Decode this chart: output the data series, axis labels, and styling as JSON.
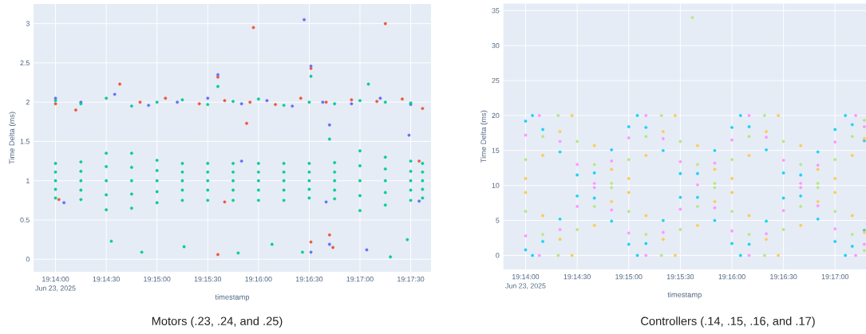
{
  "chart_data": [
    {
      "type": "scatter",
      "title": "Motors (.23, .24, and .25)",
      "xlabel": "timestamp",
      "ylabel": "Time Delta (ms)",
      "annotations": [
        "Jun 23, 2025"
      ],
      "xlim": [
        "2025-06-23T19:13:47",
        "2025-06-23T19:17:42"
      ],
      "ylim": [
        -0.16,
        3.25
      ],
      "xticks": [
        {
          "value": "2025-06-23T19:14:00",
          "label": "19:14:00"
        },
        {
          "value": "2025-06-23T19:14:30",
          "label": "19:14:30"
        },
        {
          "value": "2025-06-23T19:15:00",
          "label": "19:15:00"
        },
        {
          "value": "2025-06-23T19:15:30",
          "label": "19:15:30"
        },
        {
          "value": "2025-06-23T19:16:00",
          "label": "19:16:00"
        },
        {
          "value": "2025-06-23T19:16:30",
          "label": "19:16:30"
        },
        {
          "value": "2025-06-23T19:17:00",
          "label": "19:17:00"
        },
        {
          "value": "2025-06-23T19:17:30",
          "label": "19:17:30"
        }
      ],
      "yticks": [
        0,
        0.5,
        1,
        1.5,
        2,
        2.5,
        3
      ],
      "grid": true,
      "marker": "circle",
      "series": [
        {
          "color": "#ef553b",
          "x": [
            "2025-06-23T19:14:00",
            "2025-06-23T19:14:12",
            "2025-06-23T19:14:38",
            "2025-06-23T19:14:50",
            "2025-06-23T19:15:05",
            "2025-06-23T19:15:25",
            "2025-06-23T19:15:40",
            "2025-06-23T19:15:55",
            "2025-06-23T19:16:10",
            "2025-06-23T19:16:25",
            "2025-06-23T19:16:40",
            "2025-06-23T19:16:55",
            "2025-06-23T19:17:10",
            "2025-06-23T19:17:25",
            "2025-06-23T19:17:37",
            "2025-06-23T19:15:57",
            "2025-06-23T19:17:15",
            "2025-06-23T19:16:31",
            "2025-06-23T19:15:36",
            "2025-06-23T19:16:31",
            "2025-06-23T19:15:36",
            "2025-06-23T19:16:44",
            "2025-06-23T19:15:53",
            "2025-06-23T19:16:42",
            "2025-06-23T19:14:02",
            "2025-06-23T19:15:40",
            "2025-06-23T19:17:35"
          ],
          "values": [
            1.98,
            1.9,
            2.23,
            2.0,
            2.05,
            1.98,
            2.02,
            2.0,
            1.97,
            2.05,
            2.0,
            2.03,
            2.01,
            2.04,
            1.92,
            2.95,
            3.0,
            2.43,
            2.32,
            0.22,
            0.06,
            0.15,
            1.73,
            0.31,
            0.76,
            0.73,
            1.25
          ]
        },
        {
          "color": "#636efa",
          "x": [
            "2025-06-23T19:14:00",
            "2025-06-23T19:14:15",
            "2025-06-23T19:14:35",
            "2025-06-23T19:14:55",
            "2025-06-23T19:15:12",
            "2025-06-23T19:15:30",
            "2025-06-23T19:15:50",
            "2025-06-23T19:16:05",
            "2025-06-23T19:16:20",
            "2025-06-23T19:16:38",
            "2025-06-23T19:16:55",
            "2025-06-23T19:17:12",
            "2025-06-23T19:17:30",
            "2025-06-23T19:16:27",
            "2025-06-23T19:16:31",
            "2025-06-23T19:15:36",
            "2025-06-23T19:16:31",
            "2025-06-23T19:16:42",
            "2025-06-23T19:17:29",
            "2025-06-23T19:16:42",
            "2025-06-23T19:17:04",
            "2025-06-23T19:14:05",
            "2025-06-23T19:15:50",
            "2025-06-23T19:16:40",
            "2025-06-23T19:17:35"
          ],
          "values": [
            2.05,
            2.0,
            2.1,
            1.96,
            2.0,
            2.05,
            1.98,
            2.02,
            1.95,
            2.0,
            1.98,
            2.05,
            1.97,
            3.05,
            2.46,
            2.35,
            0.09,
            0.19,
            1.58,
            1.71,
            0.12,
            0.72,
            1.25,
            0.73,
            0.74
          ]
        },
        {
          "color": "#00cc96",
          "x": [
            "2025-06-23T19:14:00",
            "2025-06-23T19:14:00",
            "2025-06-23T19:14:00",
            "2025-06-23T19:14:00",
            "2025-06-23T19:14:00",
            "2025-06-23T19:14:15",
            "2025-06-23T19:14:15",
            "2025-06-23T19:14:15",
            "2025-06-23T19:14:15",
            "2025-06-23T19:14:15",
            "2025-06-23T19:14:30",
            "2025-06-23T19:14:30",
            "2025-06-23T19:14:30",
            "2025-06-23T19:14:30",
            "2025-06-23T19:14:30",
            "2025-06-23T19:14:45",
            "2025-06-23T19:14:45",
            "2025-06-23T19:14:45",
            "2025-06-23T19:14:45",
            "2025-06-23T19:14:45",
            "2025-06-23T19:15:00",
            "2025-06-23T19:15:00",
            "2025-06-23T19:15:00",
            "2025-06-23T19:15:00",
            "2025-06-23T19:15:00",
            "2025-06-23T19:15:15",
            "2025-06-23T19:15:15",
            "2025-06-23T19:15:15",
            "2025-06-23T19:15:15",
            "2025-06-23T19:15:15",
            "2025-06-23T19:15:30",
            "2025-06-23T19:15:30",
            "2025-06-23T19:15:30",
            "2025-06-23T19:15:30",
            "2025-06-23T19:15:30",
            "2025-06-23T19:15:45",
            "2025-06-23T19:15:45",
            "2025-06-23T19:15:45",
            "2025-06-23T19:15:45",
            "2025-06-23T19:15:45",
            "2025-06-23T19:16:00",
            "2025-06-23T19:16:00",
            "2025-06-23T19:16:00",
            "2025-06-23T19:16:00",
            "2025-06-23T19:16:00",
            "2025-06-23T19:16:15",
            "2025-06-23T19:16:15",
            "2025-06-23T19:16:15",
            "2025-06-23T19:16:15",
            "2025-06-23T19:16:15",
            "2025-06-23T19:16:30",
            "2025-06-23T19:16:30",
            "2025-06-23T19:16:30",
            "2025-06-23T19:16:30",
            "2025-06-23T19:16:30",
            "2025-06-23T19:16:45",
            "2025-06-23T19:16:45",
            "2025-06-23T19:16:45",
            "2025-06-23T19:16:45",
            "2025-06-23T19:16:45",
            "2025-06-23T19:17:00",
            "2025-06-23T19:17:00",
            "2025-06-23T19:17:00",
            "2025-06-23T19:17:00",
            "2025-06-23T19:17:00",
            "2025-06-23T19:17:15",
            "2025-06-23T19:17:15",
            "2025-06-23T19:17:15",
            "2025-06-23T19:17:15",
            "2025-06-23T19:17:15",
            "2025-06-23T19:17:30",
            "2025-06-23T19:17:30",
            "2025-06-23T19:17:30",
            "2025-06-23T19:17:30",
            "2025-06-23T19:17:30",
            "2025-06-23T19:17:37",
            "2025-06-23T19:17:37",
            "2025-06-23T19:17:37",
            "2025-06-23T19:17:37",
            "2025-06-23T19:17:37",
            "2025-06-23T19:14:00",
            "2025-06-23T19:14:15",
            "2025-06-23T19:14:30",
            "2025-06-23T19:14:45",
            "2025-06-23T19:15:00",
            "2025-06-23T19:15:15",
            "2025-06-23T19:15:30",
            "2025-06-23T19:15:45",
            "2025-06-23T19:16:00",
            "2025-06-23T19:16:15",
            "2025-06-23T19:16:30",
            "2025-06-23T19:16:45",
            "2025-06-23T19:17:00",
            "2025-06-23T19:17:15",
            "2025-06-23T19:17:30",
            "2025-06-23T19:14:33",
            "2025-06-23T19:14:51",
            "2025-06-23T19:15:16",
            "2025-06-23T19:15:48",
            "2025-06-23T19:16:26",
            "2025-06-23T19:16:31",
            "2025-06-23T19:16:08",
            "2025-06-23T19:16:42",
            "2025-06-23T19:17:18",
            "2025-06-23T19:17:28",
            "2025-06-23T19:15:36",
            "2025-06-23T19:17:05"
          ],
          "values": [
            1.22,
            1.11,
            1,
            0.89,
            0.78,
            1.24,
            1.12,
            1,
            0.88,
            0.76,
            1.35,
            1.18,
            1,
            0.82,
            0.63,
            1.35,
            1.17,
            1,
            0.83,
            0.65,
            1.26,
            1.13,
            1,
            0.86,
            0.72,
            1.22,
            1.11,
            1,
            0.88,
            0.75,
            1.22,
            1.11,
            1,
            0.88,
            0.75,
            1.22,
            1.11,
            1,
            0.88,
            0.75,
            1.22,
            1.11,
            1,
            0.88,
            0.75,
            1.22,
            1.11,
            1,
            0.88,
            0.75,
            1.22,
            1.11,
            1,
            0.89,
            0.78,
            1.23,
            1.11,
            1,
            0.88,
            0.77,
            1.38,
            1.19,
            1,
            0.81,
            0.62,
            1.3,
            1.15,
            1,
            0.85,
            0.69,
            1.25,
            1.12,
            1,
            0.88,
            0.75,
            1.22,
            1.11,
            1,
            0.89,
            0.78,
            2.02,
            1.98,
            2.05,
            1.95,
            2.0,
            2.03,
            1.97,
            2.01,
            2.04,
            1.96,
            2.0,
            1.98,
            2.02,
            2.0,
            1.99,
            0.23,
            0.09,
            0.16,
            0.08,
            0.09,
            2.33,
            0.19,
            1.53,
            0.03,
            0.25,
            2.2,
            2.23
          ]
        }
      ]
    },
    {
      "type": "scatter",
      "title": "Controllers (.14, .15, .16, and .17)",
      "xlabel": "timestamp",
      "ylabel": "Time Delta (ms)",
      "annotations": [
        "Jun 23, 2025"
      ],
      "xlim": [
        "2025-06-23T19:13:47",
        "2025-06-23T19:17:18"
      ],
      "ylim": [
        -2,
        36
      ],
      "xticks": [
        {
          "value": "2025-06-23T19:14:00",
          "label": "19:14:00"
        },
        {
          "value": "2025-06-23T19:14:30",
          "label": "19:14:30"
        },
        {
          "value": "2025-06-23T19:15:00",
          "label": "19:15:00"
        },
        {
          "value": "2025-06-23T19:15:30",
          "label": "19:15:30"
        },
        {
          "value": "2025-06-23T19:16:00",
          "label": "19:16:00"
        },
        {
          "value": "2025-06-23T19:16:30",
          "label": "19:16:30"
        },
        {
          "value": "2025-06-23T19:17:00",
          "label": "19:17:00"
        }
      ],
      "yticks": [
        0,
        5,
        10,
        15,
        20,
        25,
        30,
        35
      ],
      "grid": true,
      "marker": "circle",
      "series": [
        {
          "color": "#19d3f3",
          "x": [
            "2025-06-23T19:14:00",
            "2025-06-23T19:14:04",
            "2025-06-23T19:14:10",
            "2025-06-23T19:14:20",
            "2025-06-23T19:14:30",
            "2025-06-23T19:14:40",
            "2025-06-23T19:14:50",
            "2025-06-23T19:15:00",
            "2025-06-23T19:15:05",
            "2025-06-23T19:15:10",
            "2025-06-23T19:15:20",
            "2025-06-23T19:15:30",
            "2025-06-23T19:15:40",
            "2025-06-23T19:15:50",
            "2025-06-23T19:16:00",
            "2025-06-23T19:16:05",
            "2025-06-23T19:16:10",
            "2025-06-23T19:16:20",
            "2025-06-23T19:16:30",
            "2025-06-23T19:16:40",
            "2025-06-23T19:16:50",
            "2025-06-23T19:17:00",
            "2025-06-23T19:17:06",
            "2025-06-23T19:17:10",
            "2025-06-23T19:17:17",
            "2025-06-23T19:14:00",
            "2025-06-23T19:14:04",
            "2025-06-23T19:14:10",
            "2025-06-23T19:14:20",
            "2025-06-23T19:14:30",
            "2025-06-23T19:14:40",
            "2025-06-23T19:14:50",
            "2025-06-23T19:15:00",
            "2025-06-23T19:15:05",
            "2025-06-23T19:15:10",
            "2025-06-23T19:15:20",
            "2025-06-23T19:15:30",
            "2025-06-23T19:15:40",
            "2025-06-23T19:15:50",
            "2025-06-23T19:16:00",
            "2025-06-23T19:16:05",
            "2025-06-23T19:16:10",
            "2025-06-23T19:16:20",
            "2025-06-23T19:16:30",
            "2025-06-23T19:16:40",
            "2025-06-23T19:16:50",
            "2025-06-23T19:17:00",
            "2025-06-23T19:17:06",
            "2025-06-23T19:17:10",
            "2025-06-23T19:17:17"
          ],
          "values": [
            19.2,
            20,
            18.0,
            14.8,
            11.5,
            8.2,
            4.9,
            1.6,
            0,
            1.7,
            5.0,
            8.3,
            11.7,
            15.0,
            18.3,
            20,
            18.4,
            15.1,
            11.8,
            8.5,
            5.2,
            2.0,
            0,
            1.3,
            3.6,
            0.8,
            0,
            2.0,
            5.2,
            8.5,
            11.8,
            15.1,
            18.4,
            20,
            18.3,
            15.0,
            11.7,
            8.3,
            5.0,
            1.7,
            0,
            1.6,
            4.9,
            8.2,
            11.5,
            14.8,
            18.0,
            20,
            18.7,
            16.4
          ]
        },
        {
          "color": "#ff97ff",
          "x": [
            "2025-06-23T19:14:00",
            "2025-06-23T19:14:08",
            "2025-06-23T19:14:20",
            "2025-06-23T19:14:30",
            "2025-06-23T19:14:40",
            "2025-06-23T19:14:50",
            "2025-06-23T19:15:00",
            "2025-06-23T19:15:10",
            "2025-06-23T19:15:20",
            "2025-06-23T19:15:30",
            "2025-06-23T19:15:40",
            "2025-06-23T19:15:50",
            "2025-06-23T19:16:00",
            "2025-06-23T19:16:10",
            "2025-06-23T19:16:20",
            "2025-06-23T19:16:30",
            "2025-06-23T19:16:40",
            "2025-06-23T19:16:50",
            "2025-06-23T19:17:00",
            "2025-06-23T19:17:12",
            "2025-06-23T19:17:17",
            "2025-06-23T19:14:00",
            "2025-06-23T19:14:08",
            "2025-06-23T19:14:20",
            "2025-06-23T19:14:30",
            "2025-06-23T19:14:40",
            "2025-06-23T19:14:50",
            "2025-06-23T19:15:00",
            "2025-06-23T19:15:10",
            "2025-06-23T19:15:20",
            "2025-06-23T19:15:30",
            "2025-06-23T19:15:40",
            "2025-06-23T19:15:50",
            "2025-06-23T19:16:00",
            "2025-06-23T19:16:10",
            "2025-06-23T19:16:20",
            "2025-06-23T19:16:30",
            "2025-06-23T19:16:40",
            "2025-06-23T19:16:50",
            "2025-06-23T19:17:00",
            "2025-06-23T19:17:12",
            "2025-06-23T19:17:17"
          ],
          "values": [
            17.2,
            20,
            16.3,
            13.0,
            9.7,
            6.5,
            3.2,
            0,
            3.3,
            6.6,
            null,
            13.2,
            16.5,
            20,
            16.9,
            13.6,
            10.3,
            7.1,
            3.8,
            0,
            1.6,
            2.8,
            0,
            3.7,
            7.0,
            10.3,
            13.5,
            16.8,
            20,
            16.7,
            13.4,
            10.1,
            6.8,
            3.5,
            0,
            3.1,
            6.4,
            9.7,
            12.9,
            16.2,
            20,
            18.4
          ]
        },
        {
          "color": "#b6e880",
          "x": [
            "2025-06-23T19:14:00",
            "2025-06-23T19:14:10",
            "2025-06-23T19:14:19",
            "2025-06-23T19:14:30",
            "2025-06-23T19:14:40",
            "2025-06-23T19:14:50",
            "2025-06-23T19:15:00",
            "2025-06-23T19:15:10",
            "2025-06-23T19:15:19",
            "2025-06-23T19:15:30",
            "2025-06-23T19:15:40",
            "2025-06-23T19:15:50",
            "2025-06-23T19:16:00",
            "2025-06-23T19:16:10",
            "2025-06-23T19:16:19",
            "2025-06-23T19:16:30",
            "2025-06-23T19:16:40",
            "2025-06-23T19:16:50",
            "2025-06-23T19:17:00",
            "2025-06-23T19:17:10",
            "2025-06-23T19:17:17",
            "2025-06-23T19:14:00",
            "2025-06-23T19:14:10",
            "2025-06-23T19:14:19",
            "2025-06-23T19:14:30",
            "2025-06-23T19:14:40",
            "2025-06-23T19:14:50",
            "2025-06-23T19:15:00",
            "2025-06-23T19:15:10",
            "2025-06-23T19:15:19",
            "2025-06-23T19:15:30",
            "2025-06-23T19:15:40",
            "2025-06-23T19:15:50",
            "2025-06-23T19:16:00",
            "2025-06-23T19:16:10",
            "2025-06-23T19:16:19",
            "2025-06-23T19:16:30",
            "2025-06-23T19:16:40",
            "2025-06-23T19:16:50",
            "2025-06-23T19:17:00",
            "2025-06-23T19:17:10",
            "2025-06-23T19:17:17",
            "2025-06-23T19:15:37"
          ],
          "values": [
            13.7,
            17.0,
            20,
            16.3,
            13.0,
            9.7,
            6.3,
            3.0,
            0,
            3.7,
            7.0,
            10.3,
            13.7,
            17.0,
            20,
            16.3,
            13.0,
            9.7,
            6.3,
            3.0,
            0.7,
            6.3,
            3.0,
            0,
            3.7,
            7.0,
            10.3,
            13.7,
            17.0,
            20,
            16.3,
            13.0,
            9.7,
            6.3,
            3.0,
            0,
            3.7,
            7.0,
            10.3,
            13.7,
            17.0,
            19.3,
            34
          ]
        },
        {
          "color": "#fecb52",
          "x": [
            "2025-06-23T19:14:00",
            "2025-06-23T19:14:10",
            "2025-06-23T19:14:20",
            "2025-06-23T19:14:27",
            "2025-06-23T19:14:40",
            "2025-06-23T19:14:50",
            "2025-06-23T19:15:00",
            "2025-06-23T19:15:10",
            "2025-06-23T19:15:20",
            "2025-06-23T19:15:27",
            "2025-06-23T19:15:40",
            "2025-06-23T19:15:50",
            "2025-06-23T19:16:00",
            "2025-06-23T19:16:10",
            "2025-06-23T19:16:20",
            "2025-06-23T19:16:27",
            "2025-06-23T19:16:40",
            "2025-06-23T19:16:50",
            "2025-06-23T19:17:00",
            "2025-06-23T19:17:10",
            "2025-06-23T19:17:17",
            "2025-06-23T19:14:00",
            "2025-06-23T19:14:10",
            "2025-06-23T19:14:20",
            "2025-06-23T19:14:27",
            "2025-06-23T19:14:40",
            "2025-06-23T19:14:50",
            "2025-06-23T19:15:00",
            "2025-06-23T19:15:10",
            "2025-06-23T19:15:20",
            "2025-06-23T19:15:27",
            "2025-06-23T19:15:40",
            "2025-06-23T19:15:50",
            "2025-06-23T19:16:00",
            "2025-06-23T19:16:10",
            "2025-06-23T19:16:20",
            "2025-06-23T19:16:27",
            "2025-06-23T19:16:40",
            "2025-06-23T19:16:50",
            "2025-06-23T19:17:00",
            "2025-06-23T19:17:10",
            "2025-06-23T19:17:17"
          ],
          "values": [
            11.0,
            14.3,
            17.7,
            20,
            15.7,
            12.3,
            9.0,
            5.7,
            2.3,
            0,
            4.3,
            7.7,
            11.0,
            14.3,
            17.7,
            20,
            15.7,
            12.3,
            9.0,
            5.7,
            3.3,
            9.0,
            5.7,
            2.3,
            0,
            4.3,
            7.7,
            11.0,
            14.3,
            17.7,
            20,
            15.7,
            12.3,
            9.0,
            5.7,
            2.3,
            0,
            4.3,
            7.7,
            11.0,
            14.3,
            16.7
          ]
        }
      ]
    }
  ]
}
